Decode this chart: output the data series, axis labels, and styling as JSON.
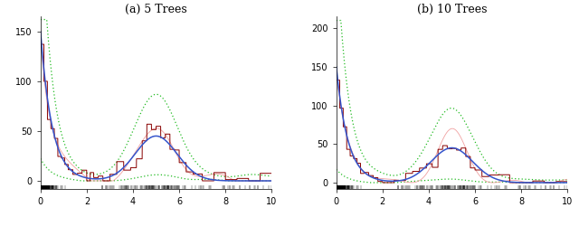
{
  "title_a": "(a) 5 Trees",
  "title_b": "(b) 10 Trees",
  "xlim": [
    0,
    10
  ],
  "ylim_a": [
    -8,
    165
  ],
  "ylim_b": [
    -8,
    215
  ],
  "yticks_a": [
    0,
    50,
    100,
    150
  ],
  "yticks_b": [
    0,
    50,
    100,
    150,
    200
  ],
  "xticks": [
    0,
    2,
    4,
    6,
    8,
    10
  ],
  "blue_color": "#3555CC",
  "dark_red_color": "#880000",
  "pink_color": "#EE9090",
  "green_color": "#22BB22",
  "background": "white",
  "title_fontsize": 9,
  "tick_fontsize": 7
}
